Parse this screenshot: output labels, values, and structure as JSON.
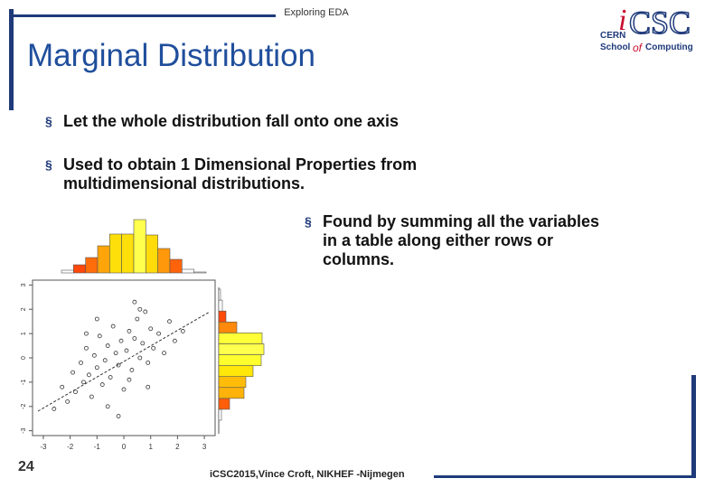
{
  "header": {
    "section": "Exploring EDA",
    "title": "Marginal Distribution"
  },
  "logo": {
    "mark_i": "i",
    "mark_rest": "CSC",
    "line1": "CERN",
    "line2a": "School",
    "line2b": "of",
    "line2c": "Computing"
  },
  "bullets": [
    {
      "lines": [
        "Let the whole distribution fall onto one axis"
      ]
    },
    {
      "lines": [
        "Used to obtain 1 Dimensional Properties from",
        "multidimensional distributions."
      ]
    },
    {
      "lines": [
        "Found by summing all the variables",
        "in a table along either rows or",
        "columns."
      ]
    }
  ],
  "bullet_marker": "§",
  "figure": {
    "xticks": [
      -3,
      -2,
      -1,
      0,
      1,
      2,
      3
    ],
    "yticks": [
      -3,
      -2,
      -1,
      0,
      1,
      2,
      3
    ],
    "xlim": [
      -3.2,
      3.2
    ],
    "ylim": [
      -3.2,
      3.2
    ],
    "top_histogram": {
      "bins": [
        -3,
        -2.5,
        -2,
        -1.5,
        -1,
        -0.5,
        0,
        0.5,
        1,
        1.5,
        2,
        2.5,
        3
      ],
      "counts": [
        3,
        9,
        17,
        30,
        43,
        43,
        59,
        42,
        27,
        15,
        4,
        1
      ]
    },
    "right_histogram": {
      "bins": [
        -3,
        -2.5,
        -2,
        -1.5,
        -1,
        -0.5,
        0,
        0.5,
        1,
        1.5,
        2,
        2.5,
        3
      ],
      "counts": [
        3,
        12,
        28,
        30,
        38,
        47,
        50,
        48,
        20,
        8,
        4,
        2
      ]
    },
    "points": {
      "x": [
        -2.6,
        -2.3,
        -2.1,
        -1.9,
        -1.8,
        -1.6,
        -1.5,
        -1.4,
        -1.3,
        -1.2,
        -1.1,
        -1.0,
        -0.9,
        -0.8,
        -0.7,
        -0.6,
        -0.5,
        -0.4,
        -0.3,
        -0.2,
        -0.1,
        0.0,
        0.1,
        0.2,
        0.3,
        0.4,
        0.5,
        0.6,
        0.7,
        0.8,
        0.9,
        1.0,
        1.1,
        1.3,
        1.5,
        1.7,
        1.9,
        2.2,
        -0.6,
        0.4,
        -1.0,
        0.9,
        -0.2,
        0.6,
        -1.4,
        0.2
      ],
      "y": [
        -2.1,
        -1.2,
        -1.8,
        -0.6,
        -1.4,
        -0.2,
        -1.0,
        0.4,
        -0.7,
        -1.6,
        0.1,
        -0.4,
        0.9,
        -1.1,
        -0.1,
        0.5,
        -0.8,
        1.3,
        0.2,
        -0.3,
        0.7,
        -1.3,
        0.3,
        1.1,
        -0.5,
        0.8,
        1.6,
        0.0,
        0.6,
        1.9,
        -0.2,
        1.2,
        0.4,
        1.0,
        0.2,
        1.5,
        0.7,
        1.1,
        -2.0,
        2.3,
        1.6,
        -1.2,
        -2.4,
        2.0,
        1.0,
        -0.9
      ]
    }
  },
  "footer": {
    "page": "24",
    "credit": "iCSC2015,Vince Croft, NIKHEF -Nijmegen"
  }
}
